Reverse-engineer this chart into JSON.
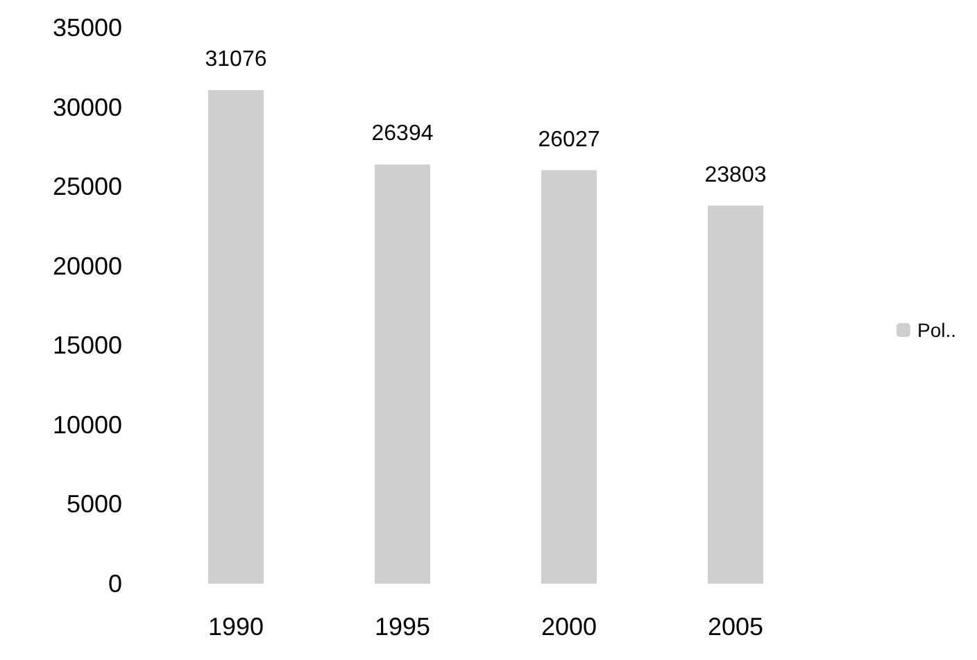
{
  "chart_data": {
    "type": "bar",
    "categories": [
      "1990",
      "1995",
      "2000",
      "2005"
    ],
    "series": [
      {
        "name": "Pol..",
        "color": "#cfcfcf",
        "values": [
          31076,
          26394,
          26027,
          23803
        ]
      }
    ],
    "ylim": [
      0,
      35000
    ],
    "yticks": [
      0,
      5000,
      10000,
      15000,
      20000,
      25000,
      30000,
      35000
    ],
    "data_labels": true,
    "grid": false,
    "legend": "right"
  }
}
